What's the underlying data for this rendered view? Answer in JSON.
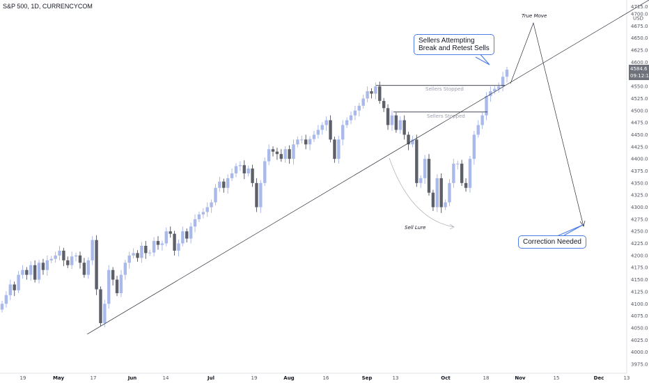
{
  "chart_data": {
    "type": "candlestick",
    "title": "S&P 500, 1D, CURRENCYCOM",
    "currency": "USD",
    "y_ticks": [
      3975.0,
      4000.0,
      4025.0,
      4050.0,
      4075.0,
      4100.0,
      4125.0,
      4150.0,
      4175.0,
      4200.0,
      4225.0,
      4250.0,
      4275.0,
      4300.0,
      4325.0,
      4350.0,
      4375.0,
      4400.0,
      4425.0,
      4450.0,
      4475.0,
      4500.0,
      4525.0,
      4550.0,
      4575.0,
      4600.0,
      4625.0,
      4650.0,
      4675.0,
      4700.0,
      4715.0
    ],
    "ylim": [
      3965,
      4715
    ],
    "x_ticks": [
      {
        "label": "19",
        "bold": false
      },
      {
        "label": "May",
        "bold": true
      },
      {
        "label": "17",
        "bold": false
      },
      {
        "label": "Jun",
        "bold": true
      },
      {
        "label": "14",
        "bold": false
      },
      {
        "label": "Jul",
        "bold": true
      },
      {
        "label": "19",
        "bold": false
      },
      {
        "label": "Aug",
        "bold": true
      },
      {
        "label": "16",
        "bold": false
      },
      {
        "label": "Sep",
        "bold": true
      },
      {
        "label": "13",
        "bold": false
      },
      {
        "label": "Oct",
        "bold": true
      },
      {
        "label": "18",
        "bold": false
      },
      {
        "label": "Nov",
        "bold": true
      },
      {
        "label": "15",
        "bold": false
      },
      {
        "label": "Dec",
        "bold": true
      },
      {
        "label": "13",
        "bold": false
      }
    ],
    "closes": [
      4100,
      4118,
      4140,
      4128,
      4160,
      4170,
      4160,
      4180,
      4150,
      4185,
      4170,
      4190,
      4193,
      4200,
      4210,
      4190,
      4180,
      4198,
      4200,
      4185,
      4160,
      4190,
      4232,
      4130,
      4060,
      4100,
      4170,
      4150,
      4122,
      4160,
      4185,
      4200,
      4205,
      4195,
      4220,
      4205,
      4206,
      4230,
      4222,
      4225,
      4250,
      4245,
      4210,
      4225,
      4250,
      4235,
      4260,
      4275,
      4285,
      4290,
      4300,
      4310,
      4340,
      4353,
      4340,
      4360,
      4370,
      4385,
      4387,
      4370,
      4380,
      4350,
      4300,
      4350,
      4395,
      4420,
      4415,
      4410,
      4400,
      4420,
      4400,
      4430,
      4440,
      4440,
      4430,
      4441,
      4450,
      4460,
      4470,
      4480,
      4440,
      4400,
      4440,
      4470,
      4480,
      4490,
      4500,
      4510,
      4525,
      4540,
      4535,
      4550,
      4520,
      4505,
      4470,
      4490,
      4460,
      4480,
      4450,
      4430,
      4440,
      4350,
      4360,
      4400,
      4330,
      4300,
      4360,
      4300,
      4310,
      4350,
      4390,
      4390,
      4350,
      4340,
      4400,
      4450,
      4470,
      4490,
      4530,
      4540,
      4545,
      4550,
      4570,
      4584.6
    ],
    "current_price": "4584.6",
    "countdown": "09:12:11",
    "annotations": {
      "sellers_attempting": [
        "Sellers Attempting",
        "Break and Retest Sells"
      ],
      "true_move": "True Move",
      "sell_lure": "Sell Lure",
      "correction": "Correction Needed",
      "sellers_stopped_1": "Sellers Stopped",
      "sellers_stopped_2": "Sellers Stopped"
    },
    "colors": {
      "up": "#a9b9ea",
      "down": "#5d6069",
      "line": "#2a2e39",
      "callout_border": "#4c7de8"
    }
  }
}
